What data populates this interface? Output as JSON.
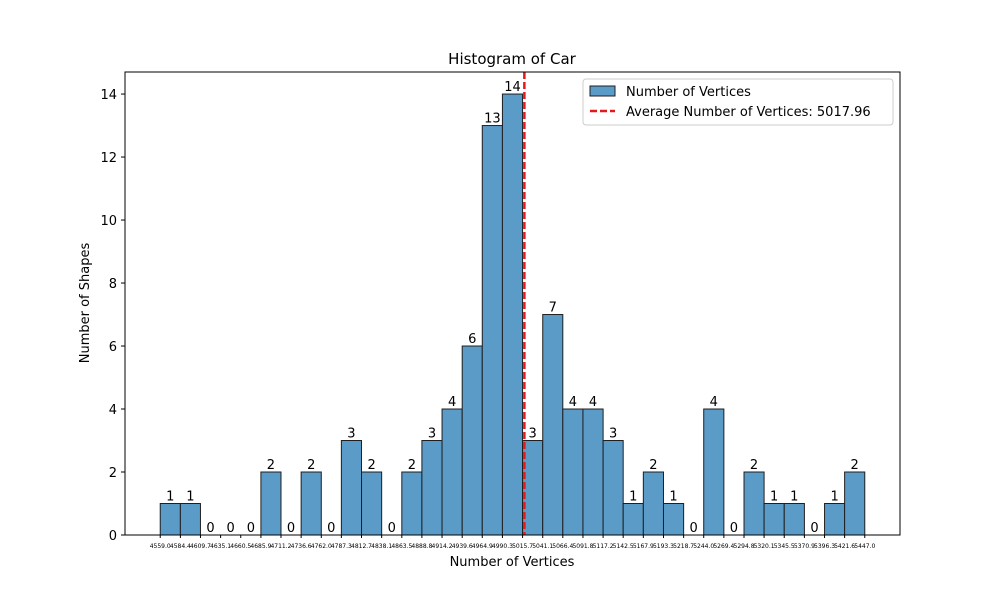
{
  "chart_data": {
    "type": "bar",
    "title": "Histogram of Car",
    "xlabel": "Number of Vertices",
    "ylabel": "Number of Shapes",
    "ylim": [
      0,
      14.7
    ],
    "yticks": [
      0,
      2,
      4,
      6,
      8,
      10,
      12,
      14
    ],
    "bin_edges": [
      4559.0,
      4584.4,
      4609.7,
      4635.1,
      4660.5,
      4685.9,
      4711.2,
      4736.6,
      4762.0,
      4787.3,
      4812.7,
      4838.1,
      4863.5,
      4888.8,
      4914.2,
      4939.6,
      4964.9,
      4990.3,
      5015.7,
      5041.1,
      5066.4,
      5091.8,
      5117.2,
      5142.5,
      5167.9,
      5193.3,
      5218.7,
      5244.0,
      5269.4,
      5294.8,
      5320.1,
      5345.5,
      5370.9,
      5396.3,
      5421.6,
      5447.0
    ],
    "xtick_labels": [
      "4559.0",
      "4584.4",
      "4609.7",
      "4635.1",
      "4660.5",
      "4685.9",
      "4711.2",
      "4736.6",
      "4762.0",
      "4787.3",
      "4812.7",
      "4838.1",
      "4863.5",
      "4888.8",
      "4914.2",
      "4939.6",
      "4964.9",
      "4990.3",
      "5015.7",
      "5041.1",
      "5066.4",
      "5091.8",
      "5117.2",
      "5142.5",
      "5167.9",
      "5193.3",
      "5218.7",
      "5244.0",
      "5269.4",
      "5294.8",
      "5320.1",
      "5345.5",
      "5370.9",
      "5396.3",
      "5421.6",
      "5447.0"
    ],
    "values": [
      1,
      1,
      0,
      0,
      0,
      2,
      0,
      2,
      0,
      3,
      2,
      0,
      2,
      3,
      4,
      6,
      13,
      14,
      3,
      7,
      4,
      4,
      3,
      1,
      2,
      1,
      0,
      4,
      0,
      2,
      1,
      1,
      0,
      1,
      2
    ],
    "bar_color": "#5b9bc8",
    "bar_edge_color": "#1f1f1f",
    "mean": {
      "value": 5017.96,
      "label": "Average Number of Vertices: 5017.96",
      "color": "#e31a1c",
      "style": "dashed"
    },
    "legend": {
      "placement": "top-right",
      "entries": [
        "Number of Vertices",
        "Average Number of Vertices: 5017.96"
      ]
    },
    "grid": false
  }
}
